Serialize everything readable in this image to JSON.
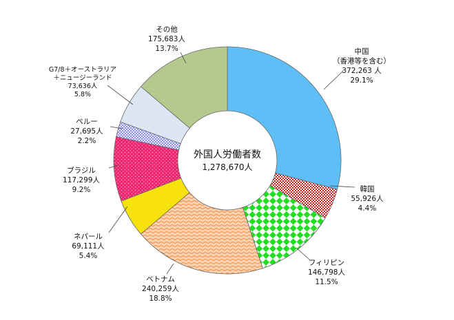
{
  "chart_data": {
    "type": "pie",
    "center": {
      "title": "外国人労働者数",
      "total": "1,278,670人"
    },
    "slices": [
      {
        "name_lines": [
          "中国",
          "（香港等を含む）"
        ],
        "value": 372263,
        "value_label": "372,263 人",
        "percent": "29.1%",
        "color": "#5DBFF5",
        "pattern": "solid"
      },
      {
        "name_lines": [
          "韓国"
        ],
        "value": 55926,
        "value_label": "55,926人",
        "percent": "4.4%",
        "color": "#C8201E",
        "pattern": "checker-fine"
      },
      {
        "name_lines": [
          "フィリピン"
        ],
        "value": 146798,
        "value_label": "146,798人",
        "percent": "11.5%",
        "color": "#22DD22",
        "pattern": "checker-large"
      },
      {
        "name_lines": [
          "ベトナム"
        ],
        "value": 240259,
        "value_label": "240,259人",
        "percent": "18.8%",
        "color": "#F5A665",
        "pattern": "waves"
      },
      {
        "name_lines": [
          "ネパール"
        ],
        "value": 69111,
        "value_label": "69,111人",
        "percent": "5.4%",
        "color": "#F7E20E",
        "pattern": "solid"
      },
      {
        "name_lines": [
          "ブラジル"
        ],
        "value": 117299,
        "value_label": "117,299人",
        "percent": "9.2%",
        "color": "#F0246E",
        "pattern": "dots"
      },
      {
        "name_lines": [
          "ペルー"
        ],
        "value": 27695,
        "value_label": "27,695人",
        "percent": "2.2%",
        "color": "#8A8AF0",
        "pattern": "cross"
      },
      {
        "name_lines": [
          "G7/8＋オーストラリア",
          "＋ニュージーランド"
        ],
        "value": 73636,
        "value_label": "73,636人",
        "percent": "5.8%",
        "color": "#DCE6F4",
        "pattern": "solid"
      },
      {
        "name_lines": [
          "その他"
        ],
        "value": 175683,
        "value_label": "175,683人",
        "percent": "13.7%",
        "color": "#B5C98E",
        "pattern": "solid"
      }
    ]
  }
}
